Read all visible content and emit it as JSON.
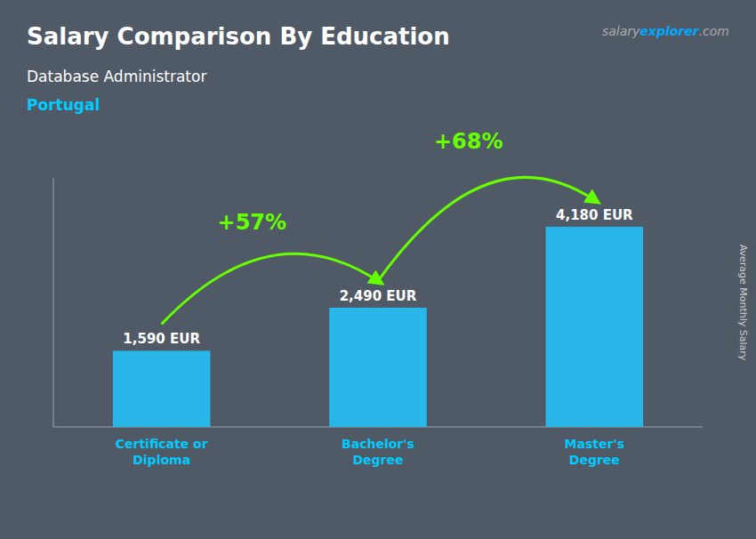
{
  "chart_data": {
    "type": "bar",
    "title": "Salary Comparison By Education",
    "subtitle": "Database Administrator",
    "ylabel": "Average Monthly Salary",
    "annotations": [
      {
        "text": "Portugal",
        "color": "#00ccff"
      },
      {
        "parts": [
          "salary",
          "explorer",
          ".com"
        ],
        "colors": [
          "#aaaaaa",
          "#00aaff",
          "#aaaaaa"
        ]
      }
    ],
    "categories": [
      "Certificate or\nDiploma",
      "Bachelor's\nDegree",
      "Master's\nDegree"
    ],
    "values": [
      1590,
      2490,
      4180
    ],
    "value_labels": [
      "1,590 EUR",
      "2,490 EUR",
      "4,180 EUR"
    ],
    "data_labels": true,
    "color": "#29b6e8",
    "change_labels": [
      {
        "label": "+57%",
        "color": "#66ff00"
      },
      {
        "label": "+68%",
        "color": "#66ff00"
      }
    ],
    "ylim": [
      0,
      5200
    ],
    "tick_labels": "x",
    "grid": false
  }
}
